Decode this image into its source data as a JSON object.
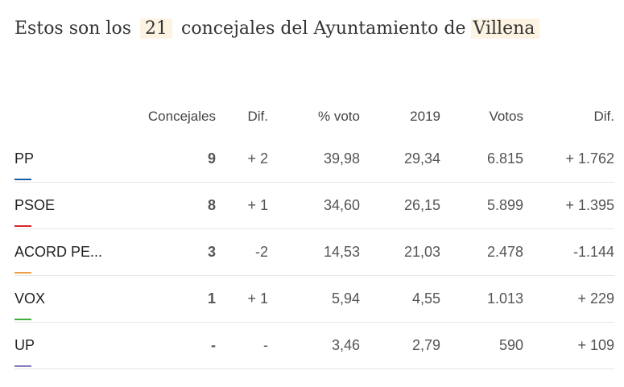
{
  "headline": {
    "prefix": "Estos son los",
    "count": "21",
    "middle": "concejales del Ayuntamiento de",
    "town": "Villena"
  },
  "table": {
    "headers": {
      "party": "",
      "seats": "Concejales",
      "seats_diff": "Dif.",
      "pct": "% voto",
      "prev": "2019",
      "votes": "Votos",
      "votes_diff": "Dif."
    },
    "rows": [
      {
        "party": "PP",
        "color": "#1b5fa8",
        "seats": "9",
        "seats_diff": "+ 2",
        "diff_sign": "pos",
        "pct": "39,98",
        "prev": "29,34",
        "votes": "6.815",
        "votes_diff": "+ 1.762"
      },
      {
        "party": "PSOE",
        "color": "#d6272e",
        "seats": "8",
        "seats_diff": "+ 1",
        "diff_sign": "pos",
        "pct": "34,60",
        "prev": "26,15",
        "votes": "5.899",
        "votes_diff": "+ 1.395"
      },
      {
        "party": "ACORD PE...",
        "color": "#f0a04b",
        "seats": "3",
        "seats_diff": "-2",
        "diff_sign": "neg",
        "pct": "14,53",
        "prev": "21,03",
        "votes": "2.478",
        "votes_diff": "-1.144"
      },
      {
        "party": "VOX",
        "color": "#3fae3a",
        "seats": "1",
        "seats_diff": "+ 1",
        "diff_sign": "pos",
        "pct": "5,94",
        "prev": "4,55",
        "votes": "1.013",
        "votes_diff": "+ 229"
      },
      {
        "party": "UP",
        "color": "#8a7fc0",
        "seats": "-",
        "seats_diff": "-",
        "diff_sign": "neg",
        "pct": "3,46",
        "prev": "2,79",
        "votes": "590",
        "votes_diff": "+ 109"
      }
    ]
  }
}
